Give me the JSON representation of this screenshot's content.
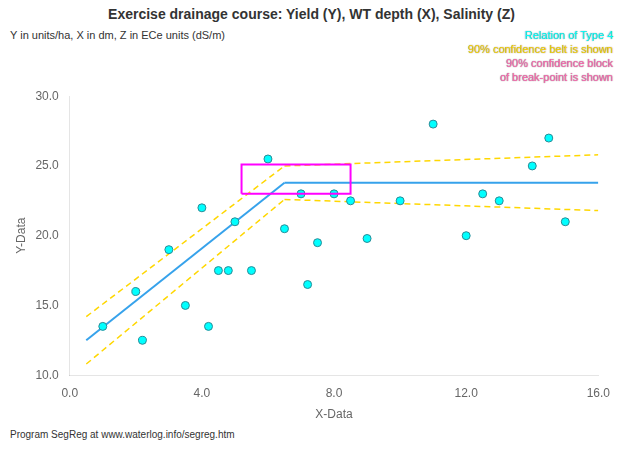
{
  "chart_data": {
    "type": "scatter",
    "title": "Exercise drainage course: Yield (Y), WT depth (X), Salinity (Z)",
    "subtitle": "Y in units/ha, X in dm, Z in ECe units (dS/m)",
    "footer": "Program SegReg at www.waterlog.info/segreg.htm",
    "xlabel": "X-Data",
    "ylabel": "Y-Data",
    "annotations": [
      {
        "text": "Relation of Type 4",
        "color": "#00FFFF"
      },
      {
        "text": "90% confidence belt is shown",
        "color": "#FFD700"
      },
      {
        "text": "90% confidence block",
        "color": "#FF69B4"
      },
      {
        "text": "of break-point is shown",
        "color": "#FF69B4"
      }
    ],
    "xlim": [
      0.0,
      16.0
    ],
    "ylim": [
      10.0,
      30.0
    ],
    "xticks": [
      {
        "value": 0.0,
        "label": "0.0"
      },
      {
        "value": 4.0,
        "label": "4.0"
      },
      {
        "value": 8.0,
        "label": "8.0"
      },
      {
        "value": 12.0,
        "label": "12.0"
      },
      {
        "value": 16.0,
        "label": "16.0"
      }
    ],
    "yticks": [
      {
        "value": 10.0,
        "label": "10.0"
      },
      {
        "value": 15.0,
        "label": "15.0"
      },
      {
        "value": 20.0,
        "label": "20.0"
      },
      {
        "value": 25.0,
        "label": "25.0"
      },
      {
        "value": 30.0,
        "label": "30.0"
      }
    ],
    "grid": false,
    "series": [
      {
        "type": "scatter",
        "color": "#00FFFF",
        "x": [
          1.0,
          2.0,
          2.2,
          3.0,
          3.5,
          4.0,
          4.2,
          4.5,
          4.8,
          5.0,
          5.5,
          6.0,
          6.5,
          7.0,
          7.2,
          7.5,
          8.0,
          8.5,
          9.0,
          10.0,
          11.0,
          12.0,
          12.5,
          13.0,
          14.0,
          14.5,
          15.0
        ],
        "values": [
          13.5,
          16.0,
          12.5,
          19.0,
          15.0,
          22.0,
          13.5,
          17.5,
          17.5,
          21.0,
          17.5,
          25.5,
          20.5,
          23.0,
          16.5,
          19.5,
          23.0,
          22.5,
          19.8,
          22.5,
          28.0,
          20.0,
          23.0,
          22.5,
          25.0,
          27.0,
          21.0
        ]
      },
      {
        "type": "line",
        "color": "#36A2EB",
        "line_style": "solid",
        "x": [
          0.5,
          6.5
        ],
        "values": [
          12.5,
          23.8
        ]
      },
      {
        "type": "line",
        "color": "#36A2EB",
        "line_style": "solid",
        "x": [
          6.5,
          16.0
        ],
        "values": [
          23.8,
          23.8
        ]
      },
      {
        "type": "line",
        "color": "#FFD700",
        "line_style": "dashed",
        "x": [
          0.5,
          6.5
        ],
        "values": [
          14.2,
          25.0
        ]
      },
      {
        "type": "line",
        "color": "#FFD700",
        "line_style": "dashed",
        "x": [
          0.5,
          6.5
        ],
        "values": [
          10.8,
          22.6
        ]
      },
      {
        "type": "line",
        "color": "#FFD700",
        "line_style": "dashed",
        "x": [
          6.5,
          16.0
        ],
        "values": [
          25.0,
          25.8
        ]
      },
      {
        "type": "line",
        "color": "#FFD700",
        "line_style": "dashed",
        "x": [
          6.5,
          16.0
        ],
        "values": [
          22.6,
          21.8
        ]
      },
      {
        "type": "box",
        "color": "#FF00FF",
        "x": [
          5.2,
          8.5
        ],
        "values": [
          23.0,
          25.1
        ]
      }
    ]
  }
}
